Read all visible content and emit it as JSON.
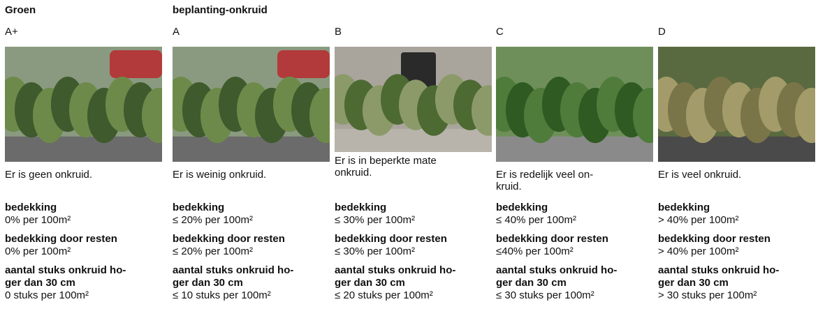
{
  "header": {
    "section": "Groen",
    "title": "beplanting-onkruid"
  },
  "columns": [
    {
      "grade": "A+",
      "description": [
        "Er is geen onkruid."
      ],
      "criteria": [
        {
          "label": [
            "bedekking"
          ],
          "value": "0% per 100m²"
        },
        {
          "label": [
            "bedekking door resten"
          ],
          "value": "0% per 100m²"
        },
        {
          "label": [
            "aantal stuks onkruid ho-",
            "ger dan 30 cm"
          ],
          "value": "0 stuks per 100m²"
        }
      ]
    },
    {
      "grade": "A",
      "description": [
        "Er is weinig onkruid."
      ],
      "criteria": [
        {
          "label": [
            "bedekking"
          ],
          "value": "≤ 20% per 100m²"
        },
        {
          "label": [
            "bedekking door resten"
          ],
          "value": "≤ 20% per 100m²"
        },
        {
          "label": [
            "aantal stuks onkruid ho-",
            "ger dan 30 cm"
          ],
          "value": "≤ 10 stuks per 100m²"
        }
      ]
    },
    {
      "grade": "B",
      "description": [
        "Er is in beperkte mate",
        "onkruid."
      ],
      "criteria": [
        {
          "label": [
            "bedekking"
          ],
          "value": "≤ 30% per 100m²"
        },
        {
          "label": [
            "bedekking door resten"
          ],
          "value": "≤ 30% per 100m²"
        },
        {
          "label": [
            "aantal stuks onkruid ho-",
            "ger dan 30 cm"
          ],
          "value": "≤ 20 stuks per 100m²"
        }
      ]
    },
    {
      "grade": "C",
      "description": [
        "Er is redelijk veel on-",
        "kruid."
      ],
      "criteria": [
        {
          "label": [
            "bedekking"
          ],
          "value": "≤ 40% per 100m²"
        },
        {
          "label": [
            "bedekking door resten"
          ],
          "value": "≤40% per 100m²"
        },
        {
          "label": [
            "aantal stuks onkruid ho-",
            "ger dan 30 cm"
          ],
          "value": "≤ 30 stuks per 100m²"
        }
      ]
    },
    {
      "grade": "D",
      "description": [
        "Er is veel onkruid."
      ],
      "criteria": [
        {
          "label": [
            "bedekking"
          ],
          "value": "> 40% per 100m²"
        },
        {
          "label": [
            "bedekking door resten"
          ],
          "value": "> 40% per 100m²"
        },
        {
          "label": [
            "aantal stuks onkruid ho-",
            "ger dan 30 cm"
          ],
          "value": "> 30 stuks per 100m²"
        }
      ]
    }
  ]
}
